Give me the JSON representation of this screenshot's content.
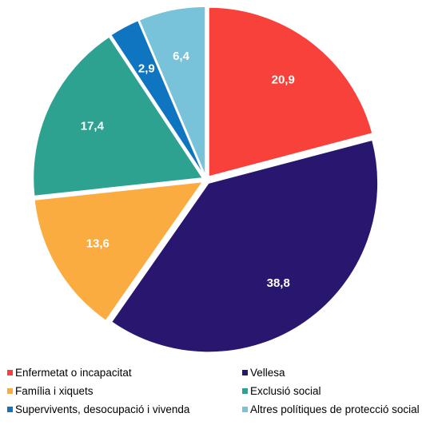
{
  "chart_data": {
    "type": "pie",
    "title": "",
    "start_angle_deg": 0,
    "direction": "clockwise",
    "exploded": true,
    "slices": [
      {
        "label": "Enfermetat o incapacitat",
        "value": 20.9,
        "display": "20,9",
        "color": "#f8413a"
      },
      {
        "label": "Vellesa",
        "value": 38.8,
        "display": "38,8",
        "color": "#29166f"
      },
      {
        "label": "Família i xiquets",
        "value": 13.6,
        "display": "13,6",
        "color": "#fbac41"
      },
      {
        "label": "Exclusió social",
        "value": 17.4,
        "display": "17,4",
        "color": "#2da291"
      },
      {
        "label": "Supervivents, desocupació i vivenda",
        "value": 2.9,
        "display": "2,9",
        "color": "#0f75c0"
      },
      {
        "label": "Altres polítiques de protecció social",
        "value": 6.4,
        "display": "6,4",
        "color": "#78c3da"
      }
    ],
    "legend_position": "bottom"
  }
}
